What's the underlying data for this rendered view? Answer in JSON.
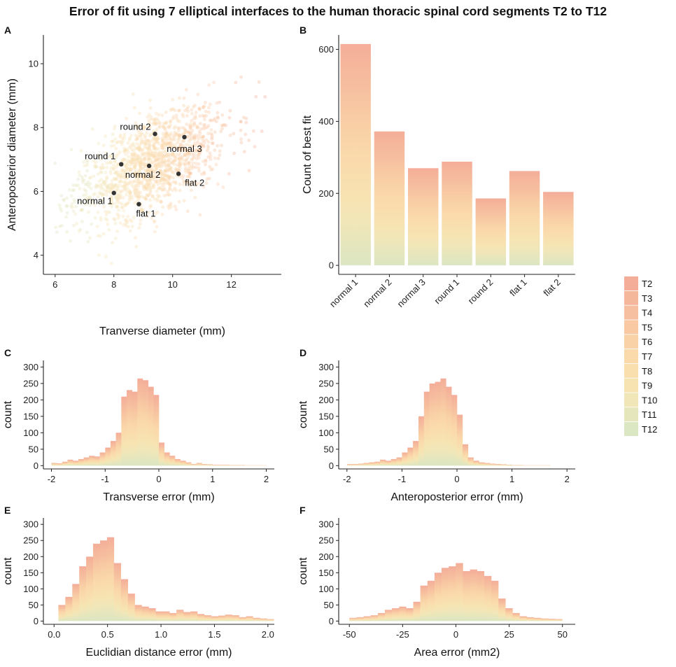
{
  "title": "Error of fit using 7 elliptical interfaces to the human thoracic spinal cord segments T2 to T12",
  "legend": {
    "items": [
      "T2",
      "T3",
      "T4",
      "T5",
      "T6",
      "T7",
      "T8",
      "T9",
      "T10",
      "T11",
      "T12"
    ],
    "colors": [
      "#f4ad99",
      "#f5b79c",
      "#f6bf9f",
      "#f8c9a3",
      "#f9d2a7",
      "#fad9ab",
      "#f9deae",
      "#f7e3b2",
      "#f1e6b8",
      "#e6e6bd",
      "#dbe6c2"
    ]
  },
  "chart_data": [
    {
      "id": "A",
      "panel_label": "A",
      "type": "scatter",
      "xlabel": "Tranverse diameter (mm)",
      "ylabel": "Anteroposterior diameter (mm)",
      "xlim": [
        5.6,
        13.7
      ],
      "ylim": [
        3.4,
        10.9
      ],
      "xticks": [
        6,
        8,
        10,
        12
      ],
      "yticks": [
        4,
        6,
        8,
        10
      ],
      "cloud": {
        "center": [
          9.2,
          6.8
        ],
        "sd": [
          1.25,
          0.9
        ],
        "corr": 0.55,
        "n": 1400
      },
      "labeled_points": [
        {
          "name": "normal 1",
          "x": 8.0,
          "y": 5.95
        },
        {
          "name": "flat 1",
          "x": 8.85,
          "y": 5.6
        },
        {
          "name": "round 1",
          "x": 8.25,
          "y": 6.85
        },
        {
          "name": "normal 2",
          "x": 9.2,
          "y": 6.8
        },
        {
          "name": "flat 2",
          "x": 10.2,
          "y": 6.55
        },
        {
          "name": "round 2",
          "x": 9.4,
          "y": 7.8
        },
        {
          "name": "normal 3",
          "x": 10.4,
          "y": 7.7
        }
      ]
    },
    {
      "id": "B",
      "panel_label": "B",
      "type": "bar",
      "xlabel": "",
      "ylabel": "Count of best fit",
      "categories": [
        "normal 1",
        "normal 2",
        "normal 3",
        "round 1",
        "round 2",
        "flat 1",
        "flat 2"
      ],
      "values": [
        615,
        372,
        270,
        288,
        186,
        262,
        204
      ],
      "ylim": [
        -25,
        640
      ],
      "yticks": [
        0,
        200,
        400,
        600
      ]
    },
    {
      "id": "C",
      "panel_label": "C",
      "type": "bar",
      "xlabel": "Transverse error (mm)",
      "ylabel": "count",
      "xlim": [
        -2.15,
        2.15
      ],
      "ylim": [
        -10,
        320
      ],
      "xticks": [
        -2,
        -1,
        0,
        1,
        2
      ],
      "yticks": [
        0,
        50,
        100,
        150,
        200,
        250,
        300
      ],
      "bins_start": -2.0,
      "bin_width": 0.1,
      "counts": [
        8,
        7,
        12,
        18,
        15,
        20,
        25,
        30,
        28,
        40,
        55,
        75,
        100,
        210,
        230,
        225,
        265,
        260,
        240,
        215,
        70,
        40,
        30,
        20,
        15,
        10,
        5,
        8,
        5,
        4,
        3,
        3,
        3,
        2,
        2,
        2,
        1,
        1,
        1,
        1
      ]
    },
    {
      "id": "D",
      "panel_label": "D",
      "type": "bar",
      "xlabel": "Anteroposterior error (mm)",
      "ylabel": "count",
      "xlim": [
        -2.15,
        2.15
      ],
      "ylim": [
        -10,
        320
      ],
      "xticks": [
        -2,
        -1,
        0,
        1,
        2
      ],
      "yticks": [
        0,
        50,
        100,
        150,
        200,
        250,
        300
      ],
      "bins_start": -2.0,
      "bin_width": 0.1,
      "counts": [
        5,
        5,
        6,
        8,
        10,
        12,
        18,
        15,
        20,
        25,
        40,
        55,
        75,
        150,
        225,
        250,
        255,
        265,
        240,
        215,
        155,
        65,
        25,
        15,
        10,
        8,
        6,
        5,
        4,
        3,
        2,
        2,
        1,
        1,
        1,
        1,
        1,
        0,
        0,
        0
      ]
    },
    {
      "id": "E",
      "panel_label": "E",
      "type": "bar",
      "xlabel": "Euclidian distance error (mm)",
      "ylabel": "count",
      "xlim": [
        -0.1,
        2.06
      ],
      "ylim": [
        -10,
        320
      ],
      "xticks": [
        0.0,
        0.5,
        1.0,
        1.5,
        2.0
      ],
      "xtick_labels": [
        "0.0",
        "0.5",
        "1.0",
        "1.5",
        "2.0"
      ],
      "yticks": [
        0,
        50,
        100,
        150,
        200,
        250,
        300
      ],
      "bins_start": 0.04,
      "bin_width": 0.065,
      "counts": [
        50,
        75,
        115,
        170,
        200,
        240,
        250,
        260,
        180,
        130,
        85,
        50,
        45,
        40,
        30,
        30,
        25,
        35,
        28,
        30,
        22,
        18,
        15,
        17,
        20,
        18,
        12,
        15,
        10,
        8,
        6
      ]
    },
    {
      "id": "F",
      "panel_label": "F",
      "type": "bar",
      "xlabel": "Area error (mm2)",
      "ylabel": "count",
      "xlim": [
        -55,
        56
      ],
      "ylim": [
        -10,
        320
      ],
      "xticks": [
        -50,
        -25,
        0,
        25,
        50
      ],
      "yticks": [
        0,
        50,
        100,
        150,
        200,
        250,
        300
      ],
      "bins_start": -50,
      "bin_width": 3.33,
      "counts": [
        10,
        12,
        15,
        18,
        25,
        35,
        40,
        45,
        40,
        60,
        110,
        125,
        150,
        165,
        170,
        180,
        155,
        160,
        155,
        140,
        125,
        70,
        40,
        25,
        15,
        12,
        10,
        8,
        7,
        6
      ]
    }
  ]
}
